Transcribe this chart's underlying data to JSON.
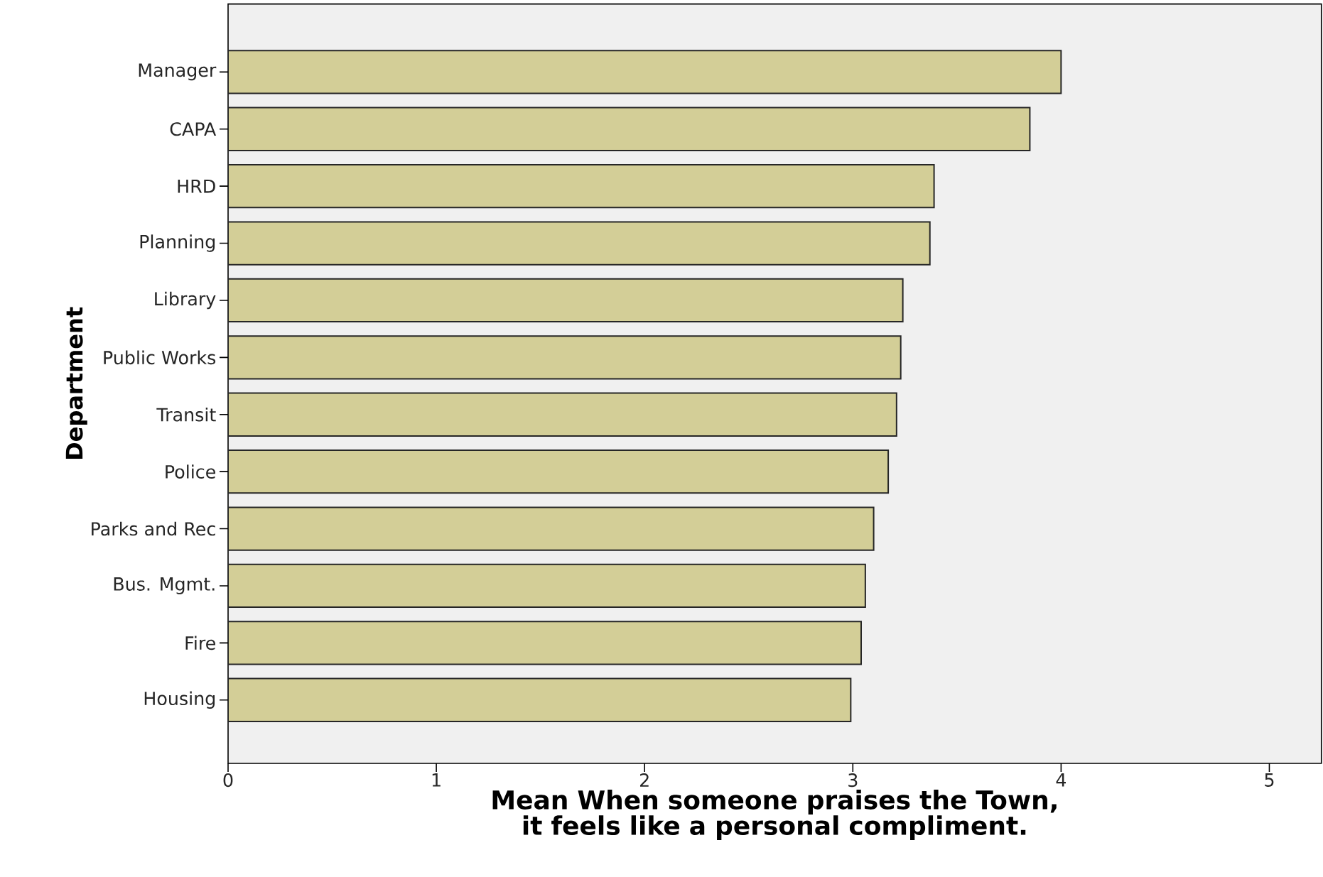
{
  "chart_data": {
    "type": "bar",
    "orientation": "horizontal",
    "xlabel": "Mean When someone praises the Town, it feels like a personal compliment.",
    "ylabel": "Department",
    "categories": [
      "Manager",
      "CAPA",
      "HRD",
      "Planning",
      "Library",
      "Public Works",
      "Transit",
      "Police",
      "Parks and Rec",
      "Bus. Mgmt.",
      "Fire",
      "Housing"
    ],
    "values": [
      4.0,
      3.85,
      3.39,
      3.37,
      3.24,
      3.23,
      3.21,
      3.17,
      3.1,
      3.06,
      3.04,
      2.99
    ],
    "color": "#d3ce97",
    "xlim": [
      0,
      5.25
    ],
    "xticks": [
      0,
      1,
      2,
      3,
      4,
      5
    ]
  }
}
